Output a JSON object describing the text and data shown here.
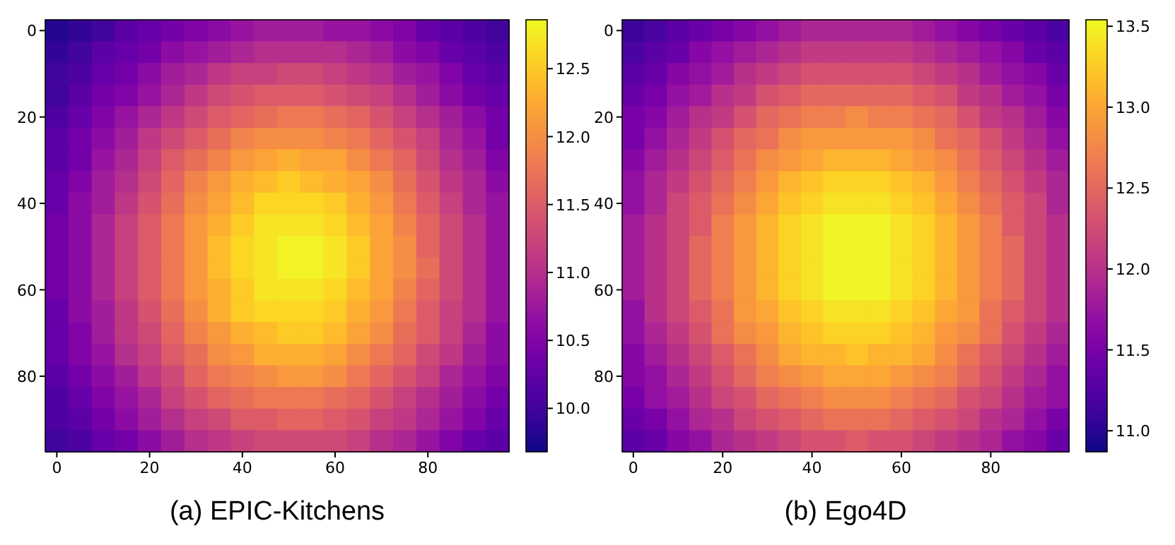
{
  "chart_data": [
    {
      "type": "heatmap",
      "title": "(a) EPIC-Kitchens",
      "categories": [
        "0",
        null,
        null,
        null,
        "20",
        null,
        null,
        null,
        "40",
        null,
        null,
        null,
        "60",
        null,
        null,
        null,
        "80",
        null,
        null,
        null
      ],
      "y_categories": [
        "0",
        null,
        null,
        null,
        "20",
        null,
        null,
        null,
        "40",
        null,
        null,
        null,
        "60",
        null,
        null,
        null,
        "80",
        null,
        null,
        null
      ],
      "clim": [
        9.68,
        12.86
      ],
      "cticks": [
        {
          "value": 10,
          "label": "10.0"
        },
        10.5,
        {
          "value": 11,
          "label": "11.0"
        },
        11.5,
        {
          "value": 12,
          "label": "12.0"
        },
        12.5
      ],
      "cells": [
        [
          9.8,
          9.9,
          10.0,
          10.2,
          10.3,
          10.4,
          10.5,
          10.6,
          10.7,
          10.8,
          10.8,
          10.8,
          10.7,
          10.7,
          10.6,
          10.5,
          10.3,
          10.2,
          10.1,
          10.0
        ],
        [
          9.9,
          10.0,
          10.2,
          10.3,
          10.4,
          10.6,
          10.7,
          10.8,
          10.9,
          11.0,
          11.0,
          11.0,
          11.0,
          10.9,
          10.8,
          10.6,
          10.5,
          10.3,
          10.2,
          10.1
        ],
        [
          10.0,
          10.1,
          10.3,
          10.4,
          10.6,
          10.8,
          10.9,
          11.1,
          11.2,
          11.2,
          11.3,
          11.3,
          11.2,
          11.1,
          11.0,
          10.8,
          10.7,
          10.5,
          10.3,
          10.2
        ],
        [
          10.0,
          10.2,
          10.4,
          10.5,
          10.7,
          10.9,
          11.1,
          11.3,
          11.4,
          11.5,
          11.5,
          11.5,
          11.4,
          11.3,
          11.2,
          11.0,
          10.8,
          10.6,
          10.4,
          10.3
        ],
        [
          10.1,
          10.3,
          10.5,
          10.7,
          10.9,
          11.1,
          11.3,
          11.5,
          11.6,
          11.7,
          11.8,
          11.8,
          11.7,
          11.6,
          11.4,
          11.2,
          11.0,
          10.8,
          10.6,
          10.4
        ],
        [
          10.2,
          10.4,
          10.6,
          10.8,
          11.1,
          11.3,
          11.5,
          11.7,
          11.9,
          12.0,
          12.0,
          12.0,
          11.9,
          11.8,
          11.6,
          11.4,
          11.2,
          10.9,
          10.7,
          10.4
        ],
        [
          10.2,
          10.4,
          10.7,
          10.9,
          11.2,
          11.5,
          11.7,
          11.9,
          12.1,
          12.2,
          12.3,
          12.2,
          12.2,
          12.0,
          11.8,
          11.6,
          11.3,
          11.0,
          10.8,
          10.5
        ],
        [
          10.3,
          10.5,
          10.8,
          11.0,
          11.3,
          11.6,
          11.9,
          12.1,
          12.3,
          12.4,
          12.5,
          12.4,
          12.3,
          12.2,
          12.0,
          11.7,
          11.4,
          11.1,
          10.9,
          10.6
        ],
        [
          10.3,
          10.6,
          10.8,
          11.1,
          11.4,
          11.7,
          12.0,
          12.2,
          12.4,
          12.6,
          12.6,
          12.6,
          12.5,
          12.3,
          12.1,
          11.8,
          11.5,
          11.2,
          10.9,
          10.7
        ],
        [
          10.4,
          10.6,
          10.9,
          11.2,
          11.5,
          11.8,
          12.1,
          12.3,
          12.5,
          12.7,
          12.7,
          12.7,
          12.6,
          12.4,
          12.2,
          11.9,
          11.6,
          11.3,
          11.0,
          10.7
        ],
        [
          10.4,
          10.6,
          10.9,
          11.2,
          11.5,
          11.8,
          12.1,
          12.4,
          12.6,
          12.7,
          12.8,
          12.8,
          12.7,
          12.5,
          12.2,
          12.0,
          11.6,
          11.3,
          11.0,
          10.7
        ],
        [
          10.4,
          10.6,
          10.9,
          11.2,
          11.5,
          11.8,
          12.1,
          12.4,
          12.6,
          12.7,
          12.8,
          12.8,
          12.7,
          12.5,
          12.2,
          12.0,
          11.7,
          11.3,
          11.0,
          10.7
        ],
        [
          10.4,
          10.6,
          10.9,
          11.2,
          11.5,
          11.8,
          12.1,
          12.3,
          12.5,
          12.7,
          12.7,
          12.7,
          12.6,
          12.4,
          12.2,
          11.9,
          11.6,
          11.3,
          11.0,
          10.7
        ],
        [
          10.3,
          10.6,
          10.8,
          11.1,
          11.4,
          11.7,
          12.0,
          12.3,
          12.5,
          12.6,
          12.6,
          12.6,
          12.5,
          12.3,
          12.1,
          11.8,
          11.5,
          11.2,
          11.0,
          10.7
        ],
        [
          10.3,
          10.5,
          10.8,
          11.1,
          11.3,
          11.6,
          11.9,
          12.1,
          12.3,
          12.4,
          12.5,
          12.5,
          12.4,
          12.2,
          12.0,
          11.7,
          11.5,
          11.2,
          10.9,
          10.6
        ],
        [
          10.3,
          10.5,
          10.7,
          11.0,
          11.2,
          11.5,
          11.7,
          12.0,
          12.1,
          12.3,
          12.3,
          12.3,
          12.2,
          12.0,
          11.8,
          11.6,
          11.3,
          11.1,
          10.8,
          10.6
        ],
        [
          10.2,
          10.4,
          10.6,
          10.8,
          11.1,
          11.3,
          11.6,
          11.8,
          11.9,
          12.0,
          12.1,
          12.1,
          12.0,
          11.8,
          11.6,
          11.4,
          11.2,
          10.9,
          10.7,
          10.5
        ],
        [
          10.1,
          10.3,
          10.5,
          10.7,
          10.9,
          11.2,
          11.4,
          11.6,
          11.7,
          11.8,
          11.8,
          11.8,
          11.7,
          11.6,
          11.4,
          11.2,
          11.0,
          10.8,
          10.6,
          10.4
        ],
        [
          10.1,
          10.2,
          10.4,
          10.6,
          10.8,
          11.0,
          11.2,
          11.3,
          11.5,
          11.5,
          11.6,
          11.6,
          11.5,
          11.4,
          11.2,
          11.1,
          10.9,
          10.7,
          10.5,
          10.3
        ],
        [
          10.0,
          10.1,
          10.3,
          10.4,
          10.6,
          10.8,
          11.0,
          11.1,
          11.2,
          11.3,
          11.3,
          11.3,
          11.3,
          11.2,
          11.0,
          10.9,
          10.7,
          10.5,
          10.3,
          10.2
        ]
      ]
    },
    {
      "type": "heatmap",
      "title": "(b) Ego4D",
      "categories": [
        "0",
        null,
        null,
        null,
        "20",
        null,
        null,
        null,
        "40",
        null,
        null,
        null,
        "60",
        null,
        null,
        null,
        "80",
        null,
        null,
        null
      ],
      "y_categories": [
        "0",
        null,
        null,
        null,
        "20",
        null,
        null,
        null,
        "40",
        null,
        null,
        null,
        "60",
        null,
        null,
        null,
        "80",
        null,
        null,
        null
      ],
      "clim": [
        10.87,
        13.54
      ],
      "cticks": [
        {
          "value": 11,
          "label": "11.0"
        },
        11.5,
        {
          "value": 12,
          "label": "12.0"
        },
        12.5,
        {
          "value": 13,
          "label": "13.0"
        },
        13.5
      ],
      "cells": [
        [
          11.1,
          11.2,
          11.3,
          11.4,
          11.5,
          11.6,
          11.7,
          11.8,
          11.9,
          11.9,
          11.9,
          11.9,
          11.9,
          11.8,
          11.7,
          11.6,
          11.5,
          11.4,
          11.3,
          11.2
        ],
        [
          11.2,
          11.3,
          11.4,
          11.6,
          11.7,
          11.8,
          11.9,
          12.0,
          12.1,
          12.1,
          12.1,
          12.1,
          12.1,
          12.0,
          11.9,
          11.8,
          11.7,
          11.6,
          11.4,
          11.3
        ],
        [
          11.3,
          11.4,
          11.6,
          11.7,
          11.8,
          12.0,
          12.1,
          12.2,
          12.3,
          12.3,
          12.3,
          12.3,
          12.3,
          12.2,
          12.1,
          12.0,
          11.8,
          11.7,
          11.6,
          11.4
        ],
        [
          11.4,
          11.5,
          11.7,
          11.8,
          12.0,
          12.1,
          12.3,
          12.4,
          12.5,
          12.5,
          12.5,
          12.5,
          12.5,
          12.4,
          12.3,
          12.1,
          12.0,
          11.8,
          11.7,
          11.5
        ],
        [
          11.5,
          11.6,
          11.8,
          12.0,
          12.1,
          12.3,
          12.5,
          12.6,
          12.7,
          12.7,
          12.8,
          12.7,
          12.7,
          12.6,
          12.5,
          12.3,
          12.1,
          12.0,
          11.8,
          11.6
        ],
        [
          11.5,
          11.7,
          11.9,
          12.1,
          12.3,
          12.5,
          12.6,
          12.8,
          12.9,
          12.9,
          12.9,
          12.9,
          12.9,
          12.8,
          12.6,
          12.5,
          12.3,
          12.1,
          11.9,
          11.7
        ],
        [
          11.6,
          11.8,
          12.0,
          12.2,
          12.4,
          12.6,
          12.8,
          12.9,
          13.0,
          13.1,
          13.1,
          13.1,
          13.0,
          12.9,
          12.8,
          12.6,
          12.4,
          12.2,
          12.0,
          11.8
        ],
        [
          11.7,
          11.9,
          12.1,
          12.3,
          12.5,
          12.7,
          12.9,
          13.1,
          13.2,
          13.3,
          13.3,
          13.3,
          13.2,
          13.1,
          12.9,
          12.7,
          12.5,
          12.3,
          12.1,
          11.9
        ],
        [
          11.7,
          11.9,
          12.2,
          12.4,
          12.6,
          12.8,
          13.0,
          13.2,
          13.3,
          13.4,
          13.4,
          13.4,
          13.3,
          13.2,
          13.0,
          12.8,
          12.6,
          12.4,
          12.2,
          11.9
        ],
        [
          11.8,
          12.0,
          12.2,
          12.4,
          12.7,
          12.9,
          13.1,
          13.3,
          13.4,
          13.5,
          13.5,
          13.5,
          13.4,
          13.3,
          13.1,
          12.9,
          12.7,
          12.4,
          12.2,
          12.0
        ],
        [
          11.8,
          12.0,
          12.2,
          12.5,
          12.7,
          12.9,
          13.1,
          13.3,
          13.4,
          13.5,
          13.5,
          13.5,
          13.4,
          13.3,
          13.1,
          12.9,
          12.7,
          12.5,
          12.2,
          12.0
        ],
        [
          11.8,
          12.0,
          12.2,
          12.5,
          12.7,
          12.9,
          13.1,
          13.3,
          13.4,
          13.5,
          13.5,
          13.5,
          13.4,
          13.3,
          13.1,
          12.9,
          12.7,
          12.5,
          12.2,
          12.0
        ],
        [
          11.8,
          12.0,
          12.2,
          12.5,
          12.7,
          12.9,
          13.1,
          13.3,
          13.4,
          13.5,
          13.5,
          13.5,
          13.4,
          13.3,
          13.1,
          12.9,
          12.7,
          12.5,
          12.2,
          12.0
        ],
        [
          11.7,
          12.0,
          12.2,
          12.4,
          12.6,
          12.9,
          13.0,
          13.2,
          13.3,
          13.4,
          13.4,
          13.4,
          13.3,
          13.2,
          13.0,
          12.9,
          12.6,
          12.4,
          12.2,
          12.0
        ],
        [
          11.7,
          11.9,
          12.1,
          12.3,
          12.6,
          12.8,
          12.9,
          13.1,
          13.2,
          13.3,
          13.3,
          13.3,
          13.2,
          13.1,
          12.9,
          12.8,
          12.6,
          12.3,
          12.1,
          11.9
        ],
        [
          11.6,
          11.8,
          12.0,
          12.2,
          12.4,
          12.6,
          12.8,
          13.0,
          13.1,
          13.1,
          13.2,
          13.1,
          13.1,
          13.0,
          12.8,
          12.6,
          12.4,
          12.2,
          12.0,
          11.8
        ],
        [
          11.6,
          11.7,
          11.9,
          12.1,
          12.3,
          12.5,
          12.7,
          12.8,
          12.9,
          13.0,
          13.0,
          13.0,
          12.9,
          12.8,
          12.7,
          12.5,
          12.3,
          12.1,
          11.9,
          11.7
        ],
        [
          11.5,
          11.7,
          11.8,
          12.0,
          12.2,
          12.3,
          12.5,
          12.6,
          12.7,
          12.8,
          12.8,
          12.8,
          12.7,
          12.6,
          12.5,
          12.3,
          12.2,
          12.0,
          11.8,
          11.7
        ],
        [
          11.4,
          11.5,
          11.7,
          11.9,
          12.0,
          12.2,
          12.3,
          12.4,
          12.5,
          12.6,
          12.6,
          12.6,
          12.5,
          12.4,
          12.3,
          12.2,
          12.0,
          11.9,
          11.7,
          11.5
        ],
        [
          11.3,
          11.4,
          11.6,
          11.7,
          11.9,
          12.0,
          12.1,
          12.2,
          12.3,
          12.3,
          12.4,
          12.3,
          12.3,
          12.2,
          12.1,
          12.0,
          11.9,
          11.7,
          11.6,
          11.4
        ]
      ]
    }
  ]
}
